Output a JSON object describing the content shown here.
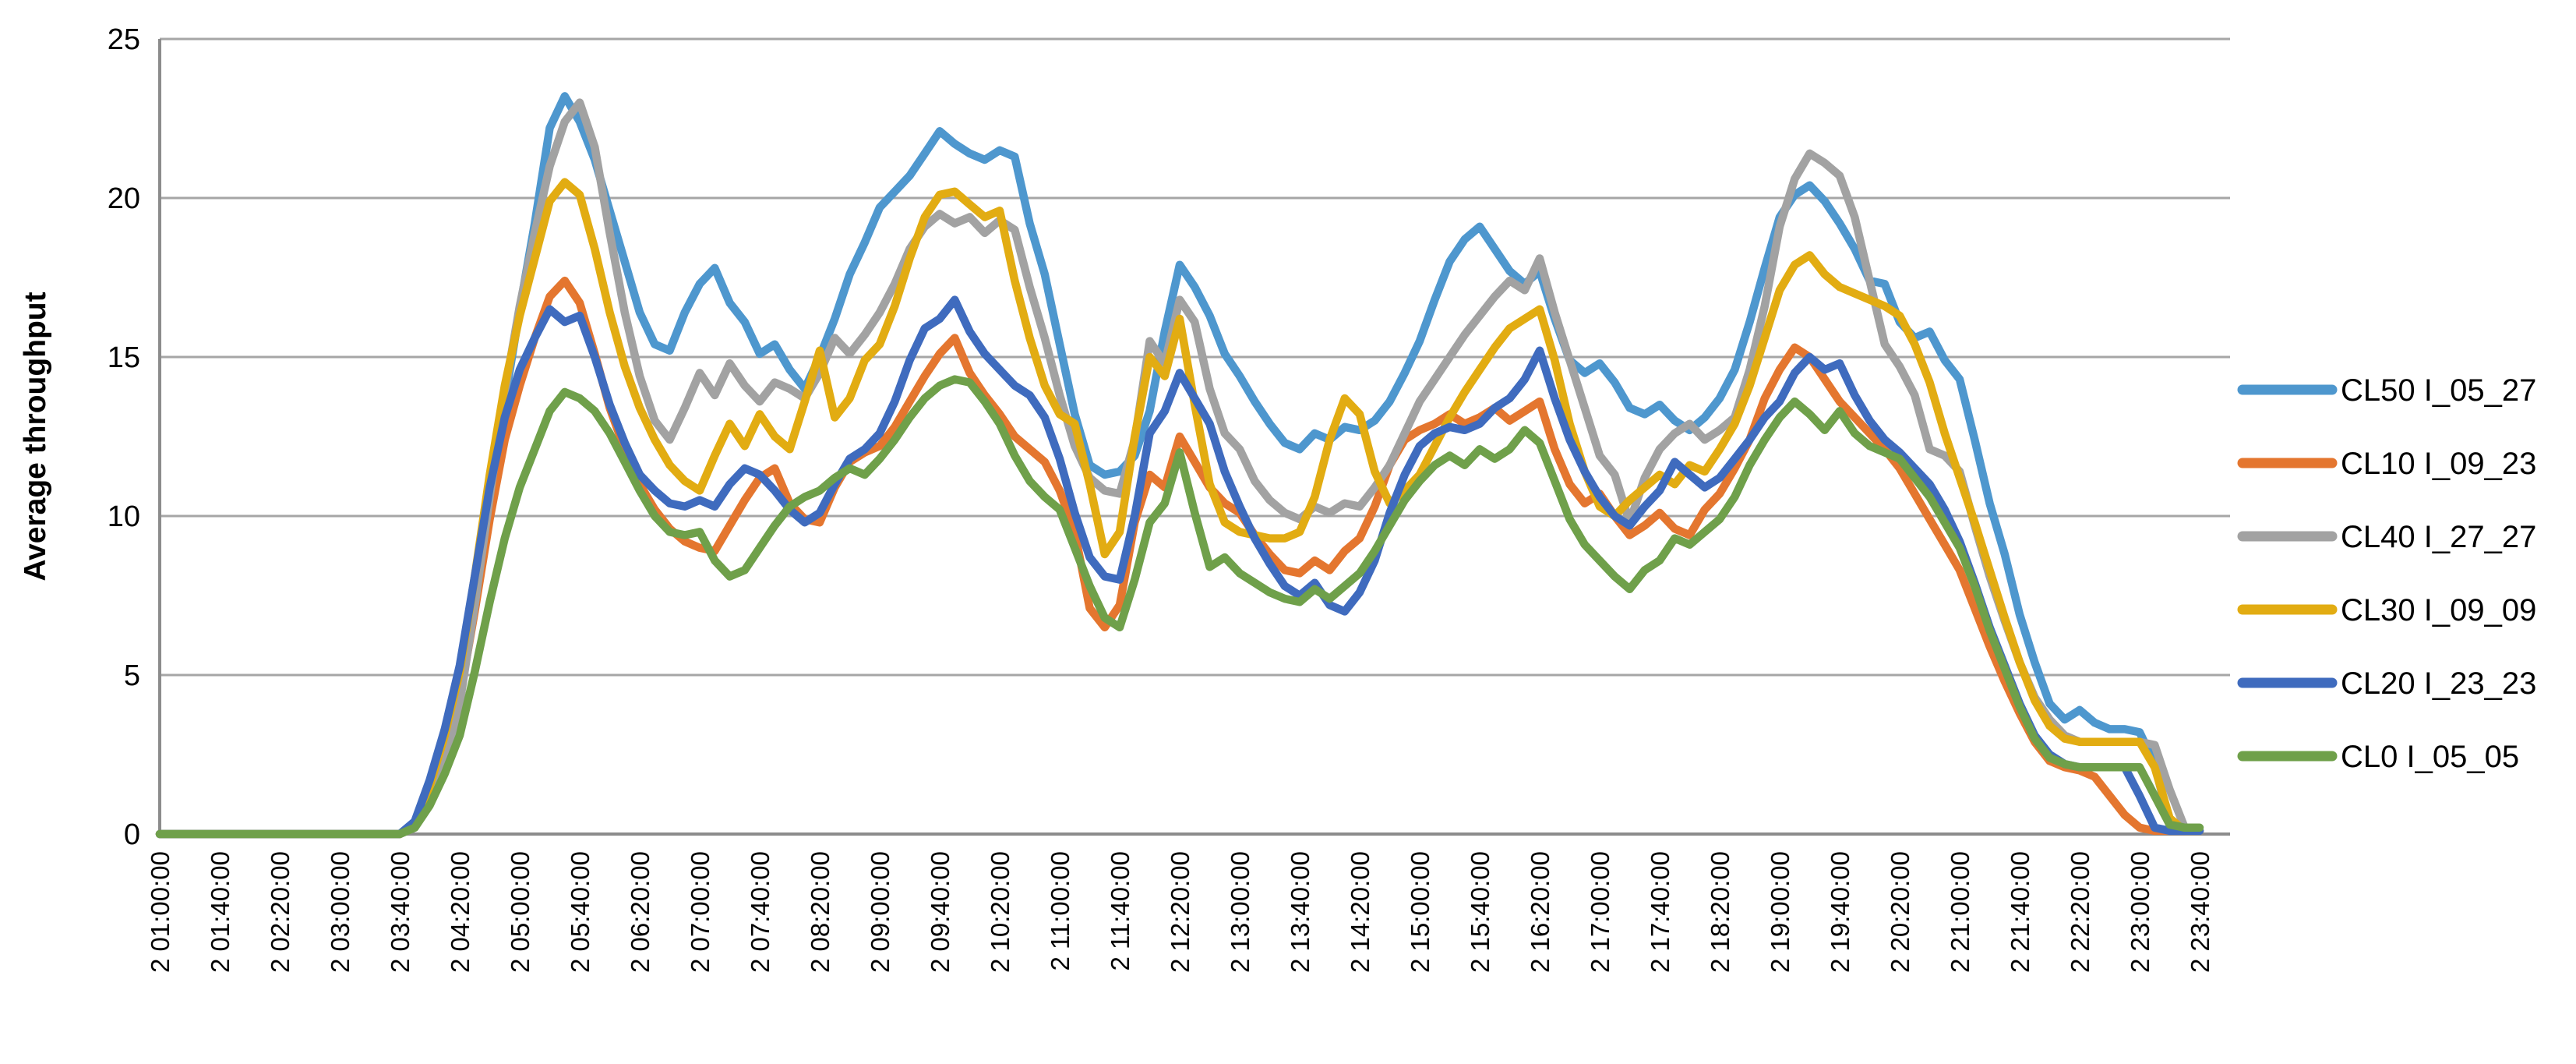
{
  "chart_data": {
    "type": "line",
    "title": "",
    "xlabel": "",
    "ylabel": "Average throughput",
    "ylim": [
      0,
      25
    ],
    "yticks": [
      0,
      5,
      10,
      15,
      20,
      25
    ],
    "grid": "horizontal",
    "legend_position": "right",
    "x_tick_labels": [
      "2 01:00:00",
      "2 01:40:00",
      "2 02:20:00",
      "2 03:00:00",
      "2 03:40:00",
      "2 04:20:00",
      "2 05:00:00",
      "2 05:40:00",
      "2 06:20:00",
      "2 07:00:00",
      "2 07:40:00",
      "2 08:20:00",
      "2 09:00:00",
      "2 09:40:00",
      "2 10:20:00",
      "2 11:00:00",
      "2 11:40:00",
      "2 12:20:00",
      "2 13:00:00",
      "2 13:40:00",
      "2 14:20:00",
      "2 15:00:00",
      "2 15:40:00",
      "2 16:20:00",
      "2 17:00:00",
      "2 17:40:00",
      "2 18:20:00",
      "2 19:00:00",
      "2 19:40:00",
      "2 20:20:00",
      "2 21:00:00",
      "2 21:40:00",
      "2 22:20:00",
      "2 23:00:00",
      "2 23:40:00"
    ],
    "points_per_tick": 4,
    "sample_interval_minutes": 10,
    "x_range": [
      "2 01:00:00",
      "2 23:40:00"
    ],
    "series": [
      {
        "name": "CL50 I_05_27",
        "color": "#4E97CE",
        "values": [
          0,
          0,
          0,
          0,
          0,
          0,
          0,
          0,
          0,
          0,
          0,
          0,
          0,
          0,
          0,
          0,
          0,
          0.3,
          1.5,
          2.9,
          4.8,
          7.6,
          10.6,
          13.6,
          16.5,
          19.2,
          22.2,
          23.2,
          22.4,
          21.2,
          19.6,
          18,
          16.4,
          15.4,
          15.2,
          16.4,
          17.3,
          17.8,
          16.7,
          16.1,
          15.1,
          15.4,
          14.6,
          14,
          15,
          16.2,
          17.6,
          18.6,
          19.7,
          20.2,
          20.7,
          21.4,
          22.1,
          21.7,
          21.4,
          21.2,
          21.5,
          21.3,
          19.2,
          17.6,
          15.4,
          13.2,
          11.6,
          11.3,
          11.4,
          11.9,
          13.3,
          15.8,
          17.9,
          17.2,
          16.3,
          15.1,
          14.4,
          13.6,
          12.9,
          12.3,
          12.1,
          12.6,
          12.4,
          12.8,
          12.7,
          13,
          13.6,
          14.5,
          15.5,
          16.8,
          18,
          18.7,
          19.1,
          18.4,
          17.7,
          17.3,
          17.7,
          16.2,
          14.9,
          14.5,
          14.8,
          14.2,
          13.4,
          13.2,
          13.5,
          13,
          12.7,
          13.1,
          13.7,
          14.6,
          16.1,
          17.8,
          19.4,
          20.1,
          20.4,
          19.9,
          19.2,
          18.4,
          17.4,
          17.3,
          16.1,
          15.6,
          15.8,
          14.9,
          14.3,
          12.4,
          10.4,
          8.8,
          6.9,
          5.4,
          4.1,
          3.6,
          3.9,
          3.5,
          3.3,
          3.3,
          3.2,
          2.2,
          0.3,
          0.1,
          0.1
        ]
      },
      {
        "name": "CL10 I_09_23",
        "color": "#E4762F",
        "values": [
          0,
          0,
          0,
          0,
          0,
          0,
          0,
          0,
          0,
          0,
          0,
          0,
          0,
          0,
          0,
          0,
          0,
          0.3,
          1.3,
          2.6,
          4.3,
          7,
          9.9,
          12.4,
          14.1,
          15.6,
          16.9,
          17.4,
          16.7,
          15.1,
          13.4,
          12.1,
          11,
          10.2,
          9.6,
          9.2,
          9,
          8.9,
          9.7,
          10.5,
          11.2,
          11.5,
          10.4,
          9.9,
          9.8,
          10.9,
          11.7,
          12,
          12.2,
          12.8,
          13.6,
          14.4,
          15.1,
          15.6,
          14.5,
          13.8,
          13.2,
          12.5,
          12.1,
          11.7,
          10.8,
          9.5,
          7.1,
          6.5,
          7.2,
          9.8,
          11.3,
          10.9,
          12.5,
          11.7,
          10.9,
          10.4,
          10.1,
          9.4,
          8.8,
          8.3,
          8.2,
          8.6,
          8.3,
          8.9,
          9.3,
          10.3,
          11.6,
          12.4,
          12.7,
          12.9,
          13.2,
          12.9,
          13.1,
          13.4,
          13,
          13.3,
          13.6,
          12.1,
          11,
          10.4,
          10.7,
          10,
          9.4,
          9.7,
          10.1,
          9.6,
          9.4,
          10.2,
          10.7,
          11.5,
          12.4,
          13.7,
          14.6,
          15.3,
          15,
          14.3,
          13.6,
          13.1,
          12.6,
          12.1,
          11.5,
          10.7,
          9.9,
          9.1,
          8.3,
          7.1,
          5.9,
          4.8,
          3.8,
          2.9,
          2.3,
          2.1,
          2,
          1.8,
          1.2,
          0.6,
          0.2,
          0.1,
          0.1,
          0.1,
          0.1
        ]
      },
      {
        "name": "CL40 I_27_27",
        "color": "#A2A2A2",
        "values": [
          0,
          0,
          0,
          0,
          0,
          0,
          0,
          0,
          0,
          0,
          0,
          0,
          0,
          0,
          0,
          0,
          0,
          0.2,
          1.1,
          2.3,
          4.1,
          7.2,
          10.6,
          13.9,
          16.6,
          18.9,
          21,
          22.4,
          23,
          21.6,
          18.9,
          16.4,
          14.4,
          13,
          12.4,
          13.4,
          14.5,
          13.8,
          14.8,
          14.1,
          13.6,
          14.2,
          14,
          13.7,
          14.5,
          15.6,
          15.1,
          15.7,
          16.4,
          17.3,
          18.4,
          19.1,
          19.5,
          19.2,
          19.4,
          18.9,
          19.3,
          19,
          17.2,
          15.6,
          13.8,
          12.2,
          11.2,
          10.8,
          10.7,
          12.4,
          15.5,
          14.8,
          16.8,
          16.1,
          14,
          12.6,
          12.1,
          11.1,
          10.5,
          10.1,
          9.9,
          10.3,
          10.1,
          10.4,
          10.3,
          10.9,
          11.6,
          12.6,
          13.6,
          14.3,
          15,
          15.7,
          16.3,
          16.9,
          17.4,
          17.1,
          18.1,
          16.4,
          14.9,
          13.4,
          11.9,
          11.3,
          9.8,
          11.2,
          12.1,
          12.6,
          12.9,
          12.4,
          12.7,
          13.1,
          14.6,
          16.6,
          19.1,
          20.6,
          21.4,
          21.1,
          20.7,
          19.4,
          17.4,
          15.4,
          14.7,
          13.8,
          12.1,
          11.9,
          11.4,
          9.7,
          8.1,
          6.7,
          5.4,
          4.3,
          3.6,
          3.1,
          2.9,
          2.9,
          2.9,
          2.9,
          2.9,
          2.8,
          1.4,
          0.2,
          0.1
        ]
      },
      {
        "name": "CL30 I_09_09",
        "color": "#E2AC12",
        "values": [
          0,
          0,
          0,
          0,
          0,
          0,
          0,
          0,
          0,
          0,
          0,
          0,
          0,
          0,
          0,
          0,
          0,
          0.3,
          1.5,
          3.1,
          5.1,
          8.1,
          11.3,
          14.1,
          16.3,
          18.1,
          19.9,
          20.5,
          20.1,
          18.4,
          16.4,
          14.7,
          13.4,
          12.4,
          11.6,
          11.1,
          10.8,
          11.9,
          12.9,
          12.2,
          13.2,
          12.5,
          12.1,
          13.6,
          15.2,
          13.1,
          13.7,
          14.9,
          15.4,
          16.6,
          18.1,
          19.4,
          20.1,
          20.2,
          19.8,
          19.4,
          19.6,
          17.4,
          15.6,
          14.1,
          13.2,
          12.9,
          11,
          8.8,
          9.5,
          12.5,
          15,
          14.4,
          16.2,
          13.5,
          11,
          9.8,
          9.5,
          9.4,
          9.3,
          9.3,
          9.5,
          10.6,
          12.4,
          13.7,
          13.2,
          11.4,
          10.4,
          10.8,
          11.3,
          12.2,
          13.1,
          13.9,
          14.6,
          15.3,
          15.9,
          16.2,
          16.5,
          14.9,
          12.9,
          11.4,
          10.3,
          10,
          10.5,
          10.9,
          11.3,
          11,
          11.6,
          11.4,
          12.1,
          12.9,
          14.1,
          15.6,
          17.1,
          17.9,
          18.2,
          17.6,
          17.2,
          17,
          16.8,
          16.6,
          16.3,
          15.4,
          14.2,
          12.6,
          11.2,
          9.8,
          8.3,
          6.8,
          5.4,
          4.2,
          3.4,
          3,
          2.9,
          2.9,
          2.9,
          2.9,
          2.9,
          2.1,
          0.5,
          0.1,
          0.1
        ]
      },
      {
        "name": "CL20 I_23_23",
        "color": "#3F6BBE",
        "values": [
          0,
          0,
          0,
          0,
          0,
          0,
          0,
          0,
          0,
          0,
          0,
          0,
          0,
          0,
          0,
          0,
          0,
          0.4,
          1.7,
          3.3,
          5.3,
          8.1,
          10.9,
          13.1,
          14.6,
          15.6,
          16.5,
          16.1,
          16.3,
          15,
          13.5,
          12.3,
          11.3,
          10.8,
          10.4,
          10.3,
          10.5,
          10.3,
          11,
          11.5,
          11.3,
          10.8,
          10.2,
          9.8,
          10.1,
          11,
          11.8,
          12.1,
          12.6,
          13.6,
          14.9,
          15.9,
          16.2,
          16.8,
          15.8,
          15.1,
          14.6,
          14.1,
          13.8,
          13.1,
          11.8,
          10.1,
          8.7,
          8.1,
          8,
          10,
          12.6,
          13.3,
          14.5,
          13.7,
          12.9,
          11.4,
          10.3,
          9.3,
          8.5,
          7.8,
          7.5,
          7.9,
          7.2,
          7,
          7.6,
          8.6,
          10.1,
          11.3,
          12.2,
          12.6,
          12.8,
          12.7,
          12.9,
          13.4,
          13.7,
          14.3,
          15.2,
          13.7,
          12.4,
          11.4,
          10.6,
          10,
          9.7,
          10.3,
          10.8,
          11.7,
          11.3,
          10.9,
          11.2,
          11.8,
          12.4,
          13.1,
          13.6,
          14.5,
          15,
          14.6,
          14.8,
          13.8,
          13,
          12.4,
          12,
          11.5,
          11,
          10.2,
          9.2,
          7.9,
          6.5,
          5.3,
          4.1,
          3.1,
          2.5,
          2.2,
          2.1,
          2.1,
          2.1,
          2.1,
          1.2,
          0.2,
          0.1,
          0.1,
          0.1
        ]
      },
      {
        "name": "CL0 I_05_05",
        "color": "#6FA04A",
        "values": [
          0,
          0,
          0,
          0,
          0,
          0,
          0,
          0,
          0,
          0,
          0,
          0,
          0,
          0,
          0,
          0,
          0,
          0.2,
          0.9,
          1.9,
          3.1,
          5.1,
          7.3,
          9.3,
          10.9,
          12.1,
          13.3,
          13.9,
          13.7,
          13.3,
          12.6,
          11.7,
          10.8,
          10,
          9.5,
          9.4,
          9.5,
          8.6,
          8.1,
          8.3,
          9,
          9.7,
          10.3,
          10.6,
          10.8,
          11.2,
          11.5,
          11.3,
          11.8,
          12.4,
          13.1,
          13.7,
          14.1,
          14.3,
          14.2,
          13.6,
          12.9,
          11.9,
          11.1,
          10.6,
          10.2,
          9,
          7.8,
          6.8,
          6.5,
          8,
          9.8,
          10.4,
          12,
          10.1,
          8.4,
          8.7,
          8.2,
          7.9,
          7.6,
          7.4,
          7.3,
          7.7,
          7.4,
          7.8,
          8.2,
          8.9,
          9.7,
          10.5,
          11.1,
          11.6,
          11.9,
          11.6,
          12.1,
          11.8,
          12.1,
          12.7,
          12.3,
          11.1,
          9.9,
          9.1,
          8.6,
          8.1,
          7.7,
          8.3,
          8.6,
          9.3,
          9.1,
          9.5,
          9.9,
          10.6,
          11.6,
          12.4,
          13.1,
          13.6,
          13.2,
          12.7,
          13.3,
          12.6,
          12.2,
          12,
          11.8,
          11.2,
          10.6,
          9.8,
          9,
          7.8,
          6.4,
          5.2,
          4,
          3,
          2.4,
          2.2,
          2.1,
          2.1,
          2.1,
          2.1,
          2.1,
          1.2,
          0.3,
          0.2,
          0.2
        ]
      }
    ]
  },
  "colors": {
    "axis": "#8C8C8C",
    "gridline": "#A6A6A6",
    "text": "#000000",
    "background": "#FFFFFF"
  }
}
